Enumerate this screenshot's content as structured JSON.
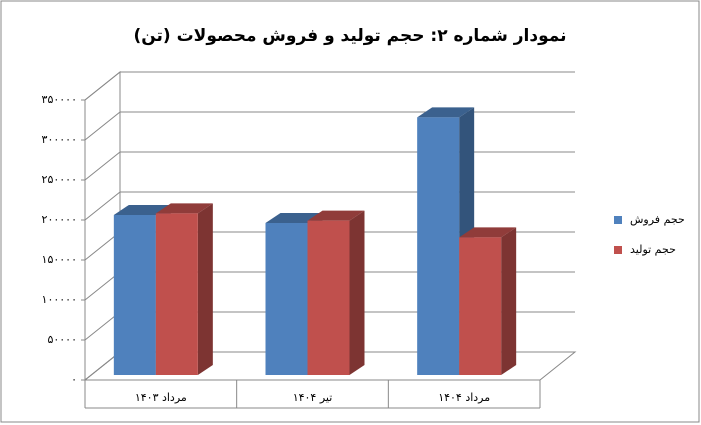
{
  "chart_data": {
    "type": "bar3d",
    "title": "نمودار شماره ۲: حجم تولید و فروش محصولات (تن)",
    "categories": [
      "مرداد ۱۴۰۳",
      "تیر ۱۴۰۴",
      "مرداد ۱۴۰۴"
    ],
    "series": [
      {
        "name": "حجم فروش",
        "color": "#4f81bd",
        "values": [
          200000,
          190000,
          322000
        ]
      },
      {
        "name": "حجم تولید",
        "color": "#c0504d",
        "values": [
          202000,
          193000,
          172000
        ]
      }
    ],
    "ylim": [
      0,
      350000
    ],
    "yticks": [
      {
        "value": 0,
        "label": "۰"
      },
      {
        "value": 50000,
        "label": "۵۰۰۰۰"
      },
      {
        "value": 100000,
        "label": "۱۰۰۰۰۰"
      },
      {
        "value": 150000,
        "label": "۱۵۰۰۰۰"
      },
      {
        "value": 200000,
        "label": "۲۰۰۰۰۰"
      },
      {
        "value": 250000,
        "label": "۲۵۰۰۰۰"
      },
      {
        "value": 300000,
        "label": "۳۰۰۰۰۰"
      },
      {
        "value": 350000,
        "label": "۳۵۰۰۰۰"
      }
    ],
    "grid": true,
    "legend": "right"
  }
}
